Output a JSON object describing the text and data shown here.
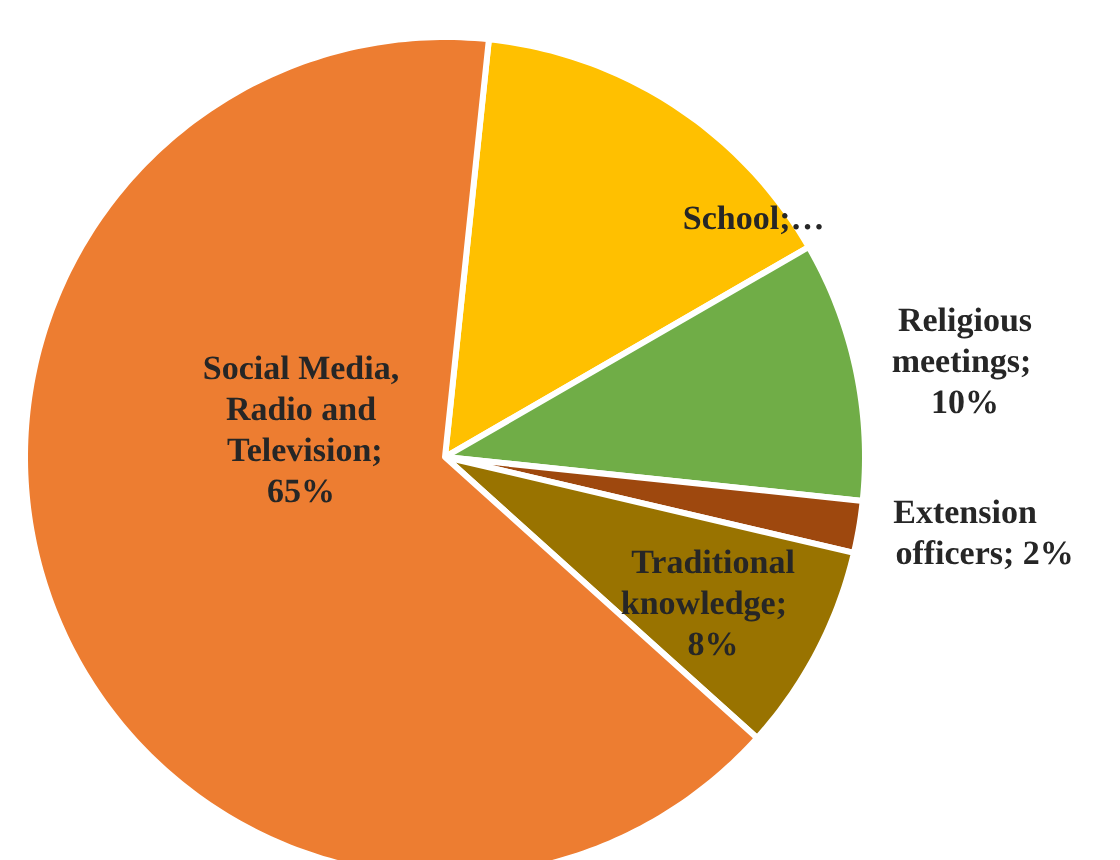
{
  "chart_data": {
    "type": "pie",
    "categories": [
      "School",
      "Religious meetings",
      "Extension officers",
      "Traditional knowledge",
      "Social Media, Radio and Television"
    ],
    "values": [
      15,
      10,
      2,
      8,
      65
    ],
    "colors": [
      "#ffc000",
      "#70ad47",
      "#9e480e",
      "#997300",
      "#ed7d31"
    ],
    "value_labels": [
      ";…",
      "; 10%",
      "; 2%",
      "; 8%",
      "; 65%"
    ],
    "legend": false
  }
}
